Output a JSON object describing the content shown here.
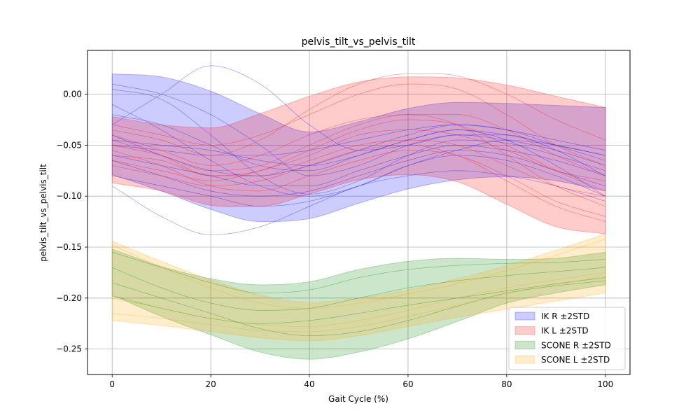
{
  "chart_data": {
    "type": "area",
    "title": "pelvis_tilt_vs_pelvis_tilt",
    "xlabel": "Gait Cycle (%)",
    "ylabel": "pelvis_tilt_vs_pelvis_tilt",
    "xlim": [
      -5,
      105
    ],
    "ylim": [
      -0.275,
      0.043
    ],
    "xticks": [
      0,
      20,
      40,
      60,
      80,
      100
    ],
    "yticks": [
      0.0,
      -0.05,
      -0.1,
      -0.15,
      -0.2,
      -0.25
    ],
    "xtick_labels": [
      "0",
      "20",
      "40",
      "60",
      "80",
      "100"
    ],
    "ytick_labels": [
      "0.00",
      "−0.05",
      "−0.10",
      "−0.15",
      "−0.20",
      "−0.25"
    ],
    "grid": true,
    "legend_position": "lower-right",
    "x": [
      0,
      10,
      20,
      30,
      40,
      50,
      60,
      70,
      80,
      90,
      100
    ],
    "bands": [
      {
        "name": "IK R ±2STD",
        "color": "#0000ff",
        "upper": [
          0.02,
          0.017,
          0.003,
          -0.019,
          -0.037,
          -0.027,
          -0.014,
          -0.008,
          -0.009,
          -0.011,
          -0.013
        ],
        "lower": [
          -0.079,
          -0.095,
          -0.113,
          -0.125,
          -0.122,
          -0.107,
          -0.093,
          -0.084,
          -0.081,
          -0.085,
          -0.095
        ],
        "traces": [
          [
            0.005,
            -0.005,
            -0.04,
            -0.08,
            -0.098,
            -0.085,
            -0.06,
            -0.045,
            -0.048,
            -0.06,
            -0.075
          ],
          [
            -0.02,
            -0.03,
            -0.05,
            -0.07,
            -0.075,
            -0.06,
            -0.045,
            -0.035,
            -0.04,
            -0.05,
            -0.06
          ],
          [
            -0.04,
            -0.06,
            -0.075,
            -0.08,
            -0.07,
            -0.055,
            -0.04,
            -0.03,
            -0.035,
            -0.05,
            -0.065
          ],
          [
            -0.06,
            -0.07,
            -0.08,
            -0.09,
            -0.09,
            -0.075,
            -0.06,
            -0.05,
            -0.055,
            -0.065,
            -0.08
          ],
          [
            0.01,
            0.0,
            -0.02,
            -0.05,
            -0.08,
            -0.07,
            -0.05,
            -0.04,
            -0.045,
            -0.055,
            -0.07
          ],
          [
            -0.08,
            -0.09,
            -0.1,
            -0.11,
            -0.105,
            -0.09,
            -0.07,
            -0.06,
            -0.065,
            -0.08,
            -0.1
          ],
          [
            -0.03,
            0.0,
            0.028,
            0.01,
            -0.03,
            -0.055,
            -0.05,
            -0.04,
            -0.04,
            -0.055,
            -0.08
          ],
          [
            -0.045,
            -0.05,
            -0.055,
            -0.065,
            -0.07,
            -0.06,
            -0.045,
            -0.035,
            -0.045,
            -0.07,
            -0.1
          ],
          [
            -0.09,
            -0.12,
            -0.138,
            -0.13,
            -0.11,
            -0.09,
            -0.08,
            -0.075,
            -0.08,
            -0.09,
            -0.105
          ],
          [
            -0.01,
            -0.035,
            -0.065,
            -0.09,
            -0.1,
            -0.09,
            -0.07,
            -0.055,
            -0.045,
            -0.05,
            -0.06
          ],
          [
            -0.05,
            -0.055,
            -0.06,
            -0.06,
            -0.055,
            -0.045,
            -0.035,
            -0.03,
            -0.035,
            -0.045,
            -0.055
          ],
          [
            -0.065,
            -0.08,
            -0.095,
            -0.1,
            -0.095,
            -0.08,
            -0.065,
            -0.055,
            -0.06,
            -0.075,
            -0.09
          ]
        ]
      },
      {
        "name": "IK L ±2STD",
        "color": "#ff0000",
        "upper": [
          -0.022,
          -0.03,
          -0.033,
          -0.019,
          -0.002,
          0.012,
          0.017,
          0.016,
          0.009,
          -0.002,
          -0.013
        ],
        "lower": [
          -0.087,
          -0.095,
          -0.109,
          -0.11,
          -0.098,
          -0.084,
          -0.079,
          -0.086,
          -0.108,
          -0.13,
          -0.137
        ],
        "traces": [
          [
            -0.05,
            -0.06,
            -0.075,
            -0.07,
            -0.05,
            -0.03,
            -0.02,
            -0.02,
            -0.035,
            -0.06,
            -0.08
          ],
          [
            -0.03,
            -0.04,
            -0.05,
            -0.04,
            -0.02,
            0.0,
            0.01,
            0.005,
            -0.02,
            -0.05,
            -0.07
          ],
          [
            -0.07,
            -0.08,
            -0.09,
            -0.085,
            -0.07,
            -0.055,
            -0.05,
            -0.06,
            -0.085,
            -0.11,
            -0.125
          ],
          [
            -0.04,
            -0.055,
            -0.07,
            -0.06,
            -0.04,
            -0.025,
            -0.02,
            -0.03,
            -0.06,
            -0.09,
            -0.11
          ],
          [
            -0.06,
            -0.065,
            -0.08,
            -0.08,
            -0.065,
            -0.05,
            -0.045,
            -0.05,
            -0.07,
            -0.09,
            -0.1
          ],
          [
            -0.045,
            -0.06,
            -0.08,
            -0.075,
            -0.055,
            -0.035,
            -0.025,
            -0.03,
            -0.05,
            -0.075,
            -0.095
          ],
          [
            -0.055,
            -0.07,
            -0.09,
            -0.095,
            -0.08,
            -0.065,
            -0.055,
            -0.06,
            -0.08,
            -0.105,
            -0.12
          ],
          [
            -0.035,
            -0.045,
            -0.06,
            -0.045,
            -0.015,
            0.01,
            0.02,
            0.018,
            0.0,
            -0.025,
            -0.045
          ],
          [
            -0.065,
            -0.075,
            -0.085,
            -0.075,
            -0.06,
            -0.04,
            -0.035,
            -0.04,
            -0.055,
            -0.075,
            -0.085
          ]
        ]
      },
      {
        "name": "SCONE R ±2STD",
        "color": "#008000",
        "upper": [
          -0.152,
          -0.169,
          -0.181,
          -0.187,
          -0.184,
          -0.172,
          -0.164,
          -0.161,
          -0.162,
          -0.161,
          -0.155
        ],
        "lower": [
          -0.197,
          -0.218,
          -0.236,
          -0.253,
          -0.26,
          -0.253,
          -0.24,
          -0.223,
          -0.205,
          -0.195,
          -0.187
        ],
        "traces": [
          [
            -0.155,
            -0.17,
            -0.185,
            -0.195,
            -0.192,
            -0.18,
            -0.172,
            -0.168,
            -0.166,
            -0.165,
            -0.162
          ],
          [
            -0.185,
            -0.2,
            -0.215,
            -0.23,
            -0.237,
            -0.233,
            -0.222,
            -0.208,
            -0.195,
            -0.188,
            -0.183
          ],
          [
            -0.198,
            -0.21,
            -0.22,
            -0.225,
            -0.222,
            -0.215,
            -0.207,
            -0.2,
            -0.193,
            -0.186,
            -0.18
          ],
          [
            -0.17,
            -0.19,
            -0.205,
            -0.212,
            -0.21,
            -0.2,
            -0.19,
            -0.183,
            -0.178,
            -0.174,
            -0.17
          ]
        ]
      },
      {
        "name": "SCONE L ±2STD",
        "color": "#ffa500",
        "upper": [
          -0.144,
          -0.164,
          -0.182,
          -0.197,
          -0.204,
          -0.2,
          -0.192,
          -0.181,
          -0.168,
          -0.153,
          -0.137
        ],
        "lower": [
          -0.222,
          -0.227,
          -0.233,
          -0.239,
          -0.242,
          -0.237,
          -0.228,
          -0.219,
          -0.211,
          -0.203,
          -0.195
        ],
        "traces": [
          [
            -0.148,
            -0.17,
            -0.19,
            -0.205,
            -0.21,
            -0.205,
            -0.196,
            -0.186,
            -0.173,
            -0.158,
            -0.142
          ],
          [
            -0.2,
            -0.21,
            -0.22,
            -0.226,
            -0.228,
            -0.222,
            -0.212,
            -0.2,
            -0.19,
            -0.182,
            -0.175
          ],
          [
            -0.215,
            -0.22,
            -0.226,
            -0.232,
            -0.233,
            -0.228,
            -0.218,
            -0.207,
            -0.196,
            -0.187,
            -0.178
          ]
        ]
      }
    ]
  }
}
